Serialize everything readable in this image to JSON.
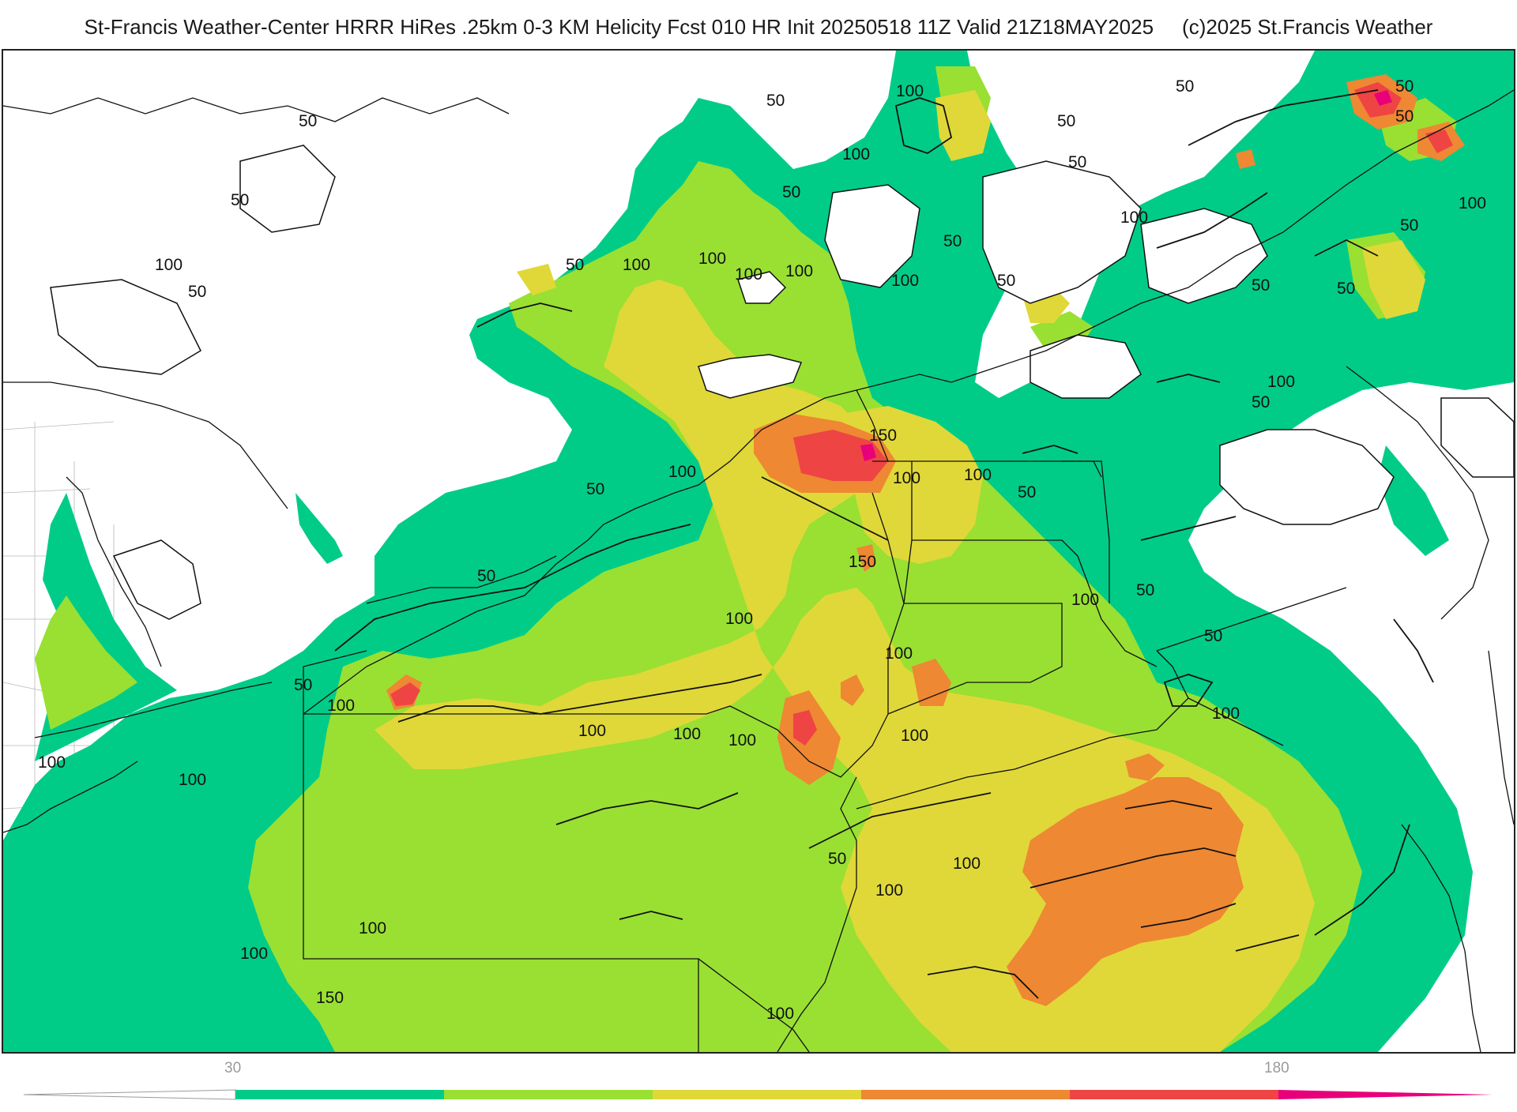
{
  "title": {
    "main": "St-Francis Weather-Center HRRR HiRes .25km 0-3 KM Helicity Fcst 010 HR Init 20250518 11Z  Valid 21Z18MAY2025",
    "credit": "(c)2025 St.Francis Weather"
  },
  "colors": {
    "c30": "#00cc88",
    "c60": "#99e033",
    "c90": "#e0d838",
    "c120": "#ee8833",
    "c150": "#ee4444",
    "c180": "#e8007a",
    "outline": "#111111",
    "county": "#8a8a8a"
  },
  "contour_labels": [
    {
      "text": "50"
    },
    {
      "text": "50"
    },
    {
      "text": "100"
    },
    {
      "text": "50"
    },
    {
      "text": "50"
    },
    {
      "text": "100"
    },
    {
      "text": "100"
    },
    {
      "text": "100"
    },
    {
      "text": "100"
    },
    {
      "text": "50"
    },
    {
      "text": "100"
    },
    {
      "text": "100"
    },
    {
      "text": "50"
    },
    {
      "text": "50"
    },
    {
      "text": "50"
    },
    {
      "text": "50"
    },
    {
      "text": "50"
    },
    {
      "text": "100"
    },
    {
      "text": "50"
    },
    {
      "text": "100"
    },
    {
      "text": "50"
    },
    {
      "text": "100"
    },
    {
      "text": "50"
    },
    {
      "text": "50"
    },
    {
      "text": "50"
    },
    {
      "text": "50"
    },
    {
      "text": "100"
    },
    {
      "text": "50"
    },
    {
      "text": "150"
    },
    {
      "text": "100"
    },
    {
      "text": "100"
    },
    {
      "text": "100"
    },
    {
      "text": "50"
    },
    {
      "text": "150"
    },
    {
      "text": "50"
    },
    {
      "text": "100"
    },
    {
      "text": "50"
    },
    {
      "text": "100"
    },
    {
      "text": "50"
    },
    {
      "text": "50"
    },
    {
      "text": "100"
    },
    {
      "text": "100"
    },
    {
      "text": "100"
    },
    {
      "text": "100"
    },
    {
      "text": "100"
    },
    {
      "text": "100"
    },
    {
      "text": "50"
    },
    {
      "text": "100"
    },
    {
      "text": "100"
    },
    {
      "text": "100"
    },
    {
      "text": "50"
    },
    {
      "text": "100"
    },
    {
      "text": "100"
    },
    {
      "text": "150"
    },
    {
      "text": "100"
    },
    {
      "text": "100"
    },
    {
      "text": "100"
    }
  ],
  "colorbar": {
    "tick_labels": [
      "30",
      "180"
    ],
    "levels": [
      30,
      60,
      90,
      120,
      150,
      180
    ]
  }
}
